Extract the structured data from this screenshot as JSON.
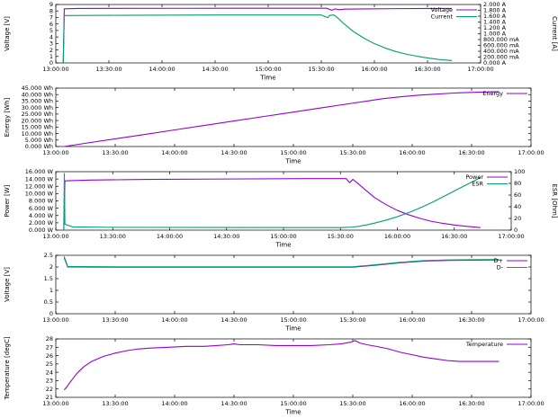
{
  "colors": {
    "purple": "#9400d3",
    "green": "#009e73",
    "axis": "#000000",
    "background": "#ffffff"
  },
  "x_axis": {
    "label": "Time",
    "min": 13,
    "max": 17,
    "tick_labels": [
      "13:00:00",
      "13:30:00",
      "14:00:00",
      "14:30:00",
      "15:00:00",
      "15:30:00",
      "16:00:00",
      "16:30:00",
      "17:00:00"
    ]
  },
  "chart_data": [
    {
      "name": "voltage-current-chart",
      "type": "line",
      "ylabel": "Voltage [V]",
      "ylim": [
        0,
        9
      ],
      "yticks": [
        "0",
        "1",
        "2",
        "3",
        "4",
        "5",
        "6",
        "7",
        "8",
        "9"
      ],
      "y2label": "Current [A]",
      "y2lim": [
        0,
        2
      ],
      "y2ticks": [
        "0.000 A",
        "200.000 mA",
        "400.000 mA",
        "600.000 mA",
        "800.000 mA",
        "1.000 A",
        "1.200 A",
        "1.400 A",
        "1.600 A",
        "1.800 A",
        "2.000 A"
      ],
      "xlabel": "Time",
      "legend": [
        "Voltage",
        "Current"
      ],
      "series": [
        {
          "name": "Voltage",
          "color_key": "purple",
          "axis": "y1",
          "points": [
            [
              13.07,
              0
            ],
            [
              13.08,
              8.33
            ],
            [
              13.2,
              8.38
            ],
            [
              13.6,
              8.4
            ],
            [
              14.2,
              8.41
            ],
            [
              15.0,
              8.42
            ],
            [
              15.55,
              8.42
            ],
            [
              15.6,
              8.12
            ],
            [
              15.63,
              8.33
            ],
            [
              15.66,
              8.2
            ],
            [
              15.72,
              8.28
            ],
            [
              15.9,
              8.32
            ],
            [
              16.2,
              8.36
            ],
            [
              16.5,
              8.38
            ],
            [
              16.73,
              8.39
            ]
          ]
        },
        {
          "name": "Current",
          "color_key": "green",
          "axis": "y2",
          "points": [
            [
              13.07,
              0
            ],
            [
              13.08,
              1.62
            ],
            [
              13.5,
              1.63
            ],
            [
              14.5,
              1.64
            ],
            [
              15.5,
              1.64
            ],
            [
              15.56,
              1.55
            ],
            [
              15.58,
              1.63
            ],
            [
              15.62,
              1.64
            ],
            [
              15.66,
              1.52
            ],
            [
              15.72,
              1.32
            ],
            [
              15.8,
              1.08
            ],
            [
              15.9,
              0.85
            ],
            [
              16.0,
              0.66
            ],
            [
              16.1,
              0.51
            ],
            [
              16.2,
              0.39
            ],
            [
              16.3,
              0.3
            ],
            [
              16.4,
              0.23
            ],
            [
              16.5,
              0.17
            ],
            [
              16.6,
              0.12
            ],
            [
              16.7,
              0.09
            ],
            [
              16.73,
              0.08
            ]
          ]
        }
      ]
    },
    {
      "name": "energy-chart",
      "type": "line",
      "ylabel": "Energy [Wh]",
      "ylim": [
        0,
        45
      ],
      "yticks": [
        "0.000 Wh",
        "5.000 Wh",
        "10.000 Wh",
        "15.000 Wh",
        "20.000 Wh",
        "25.000 Wh",
        "30.000 Wh",
        "35.000 Wh",
        "40.000 Wh",
        "45.000 Wh"
      ],
      "xlabel": "Time",
      "legend": [
        "Energy"
      ],
      "series": [
        {
          "name": "Energy",
          "color_key": "purple",
          "axis": "y1",
          "points": [
            [
              13.07,
              0
            ],
            [
              13.25,
              2.5
            ],
            [
              13.5,
              5.9
            ],
            [
              13.75,
              9.3
            ],
            [
              14.0,
              12.8
            ],
            [
              14.25,
              16.2
            ],
            [
              14.5,
              19.7
            ],
            [
              14.75,
              23.1
            ],
            [
              15.0,
              26.5
            ],
            [
              15.25,
              30.0
            ],
            [
              15.5,
              33.4
            ],
            [
              15.62,
              35.0
            ],
            [
              15.75,
              36.8
            ],
            [
              15.9,
              38.3
            ],
            [
              16.05,
              39.5
            ],
            [
              16.2,
              40.4
            ],
            [
              16.35,
              41.2
            ],
            [
              16.5,
              41.7
            ],
            [
              16.65,
              42.1
            ],
            [
              16.73,
              42.3
            ]
          ]
        }
      ]
    },
    {
      "name": "power-esr-chart",
      "type": "line",
      "ylabel": "Power [W]",
      "ylim": [
        0,
        16
      ],
      "yticks": [
        "0.000 W",
        "2.000 W",
        "4.000 W",
        "6.000 W",
        "8.000 W",
        "10.000 W",
        "12.000 W",
        "14.000 W",
        "16.000 W"
      ],
      "y2label": "ESR [Ohm]",
      "y2lim": [
        0,
        100
      ],
      "y2ticks": [
        "0",
        "20",
        "40",
        "60",
        "80",
        "100"
      ],
      "xlabel": "Time",
      "legend": [
        "Power",
        "ESR"
      ],
      "series": [
        {
          "name": "Power",
          "color_key": "purple",
          "axis": "y1",
          "points": [
            [
              13.07,
              0
            ],
            [
              13.08,
              13.5
            ],
            [
              13.3,
              13.7
            ],
            [
              13.8,
              13.9
            ],
            [
              14.5,
              14.0
            ],
            [
              15.2,
              14.1
            ],
            [
              15.55,
              14.1
            ],
            [
              15.58,
              13.0
            ],
            [
              15.61,
              13.9
            ],
            [
              15.66,
              12.6
            ],
            [
              15.72,
              11.0
            ],
            [
              15.8,
              8.9
            ],
            [
              15.9,
              7.0
            ],
            [
              16.0,
              5.4
            ],
            [
              16.1,
              4.2
            ],
            [
              16.2,
              3.2
            ],
            [
              16.3,
              2.4
            ],
            [
              16.4,
              1.85
            ],
            [
              16.5,
              1.4
            ],
            [
              16.6,
              1.05
            ],
            [
              16.7,
              0.78
            ],
            [
              16.73,
              0.7
            ]
          ]
        },
        {
          "name": "ESR",
          "color_key": "green",
          "axis": "y2",
          "points": [
            [
              13.07,
              0
            ],
            [
              13.075,
              97
            ],
            [
              13.08,
              10
            ],
            [
              13.15,
              5.5
            ],
            [
              13.5,
              4.8
            ],
            [
              14.5,
              4.5
            ],
            [
              15.5,
              4.4
            ],
            [
              15.6,
              5.2
            ],
            [
              15.66,
              6.5
            ],
            [
              15.72,
              8.5
            ],
            [
              15.8,
              12
            ],
            [
              15.9,
              17
            ],
            [
              16.0,
              23
            ],
            [
              16.1,
              30
            ],
            [
              16.2,
              38
            ],
            [
              16.3,
              47
            ],
            [
              16.4,
              57
            ],
            [
              16.5,
              67
            ],
            [
              16.6,
              77
            ],
            [
              16.65,
              82
            ],
            [
              16.7,
              87
            ],
            [
              16.73,
              90
            ]
          ]
        }
      ]
    },
    {
      "name": "data-line-voltage-chart",
      "type": "line",
      "ylabel": "Voltage [V]",
      "ylim": [
        0,
        2.5
      ],
      "yticks": [
        "0",
        "0.5",
        "1",
        "1.5",
        "2",
        "2.5"
      ],
      "xlabel": "Time",
      "legend": [
        "D+",
        "D-"
      ],
      "series": [
        {
          "name": "D+",
          "color_key": "purple",
          "axis": "y1",
          "points": [
            [
              13.07,
              2.4
            ],
            [
              13.1,
              2.0
            ],
            [
              13.5,
              1.99
            ],
            [
              15.5,
              1.99
            ],
            [
              15.7,
              2.08
            ],
            [
              15.9,
              2.18
            ],
            [
              16.1,
              2.25
            ],
            [
              16.3,
              2.28
            ],
            [
              16.5,
              2.29
            ],
            [
              16.73,
              2.3
            ]
          ]
        },
        {
          "name": "D-",
          "color_key": "green",
          "axis": "y1",
          "points": [
            [
              13.07,
              2.45
            ],
            [
              13.1,
              2.02
            ],
            [
              13.5,
              2.01
            ],
            [
              15.5,
              2.01
            ],
            [
              15.7,
              2.1
            ],
            [
              15.9,
              2.2
            ],
            [
              16.1,
              2.27
            ],
            [
              16.3,
              2.3
            ],
            [
              16.5,
              2.31
            ],
            [
              16.73,
              2.32
            ]
          ]
        }
      ]
    },
    {
      "name": "temperature-chart",
      "type": "line",
      "ylabel": "Temperature [degC]",
      "ylim": [
        21,
        28
      ],
      "yticks": [
        "21",
        "22",
        "23",
        "24",
        "25",
        "26",
        "27",
        "28"
      ],
      "xlabel": "Time",
      "legend": [
        "Temperature"
      ],
      "series": [
        {
          "name": "Temperature",
          "color_key": "purple",
          "axis": "y1",
          "points": [
            [
              13.07,
              21.9
            ],
            [
              13.09,
              22.2
            ],
            [
              13.13,
              23.0
            ],
            [
              13.18,
              23.9
            ],
            [
              13.23,
              24.6
            ],
            [
              13.3,
              25.3
            ],
            [
              13.4,
              25.9
            ],
            [
              13.5,
              26.3
            ],
            [
              13.6,
              26.6
            ],
            [
              13.7,
              26.8
            ],
            [
              13.8,
              26.9
            ],
            [
              13.95,
              27.0
            ],
            [
              14.1,
              27.1
            ],
            [
              14.25,
              27.1
            ],
            [
              14.35,
              27.2
            ],
            [
              14.45,
              27.3
            ],
            [
              14.5,
              27.4
            ],
            [
              14.55,
              27.3
            ],
            [
              14.7,
              27.3
            ],
            [
              14.85,
              27.2
            ],
            [
              15.0,
              27.2
            ],
            [
              15.15,
              27.2
            ],
            [
              15.3,
              27.3
            ],
            [
              15.4,
              27.4
            ],
            [
              15.48,
              27.6
            ],
            [
              15.52,
              27.8
            ],
            [
              15.56,
              27.5
            ],
            [
              15.62,
              27.3
            ],
            [
              15.7,
              27.1
            ],
            [
              15.8,
              26.8
            ],
            [
              15.9,
              26.4
            ],
            [
              16.0,
              26.1
            ],
            [
              16.1,
              25.8
            ],
            [
              16.2,
              25.6
            ],
            [
              16.3,
              25.4
            ],
            [
              16.4,
              25.3
            ],
            [
              16.55,
              25.3
            ],
            [
              16.65,
              25.3
            ],
            [
              16.73,
              25.3
            ]
          ]
        }
      ]
    }
  ]
}
